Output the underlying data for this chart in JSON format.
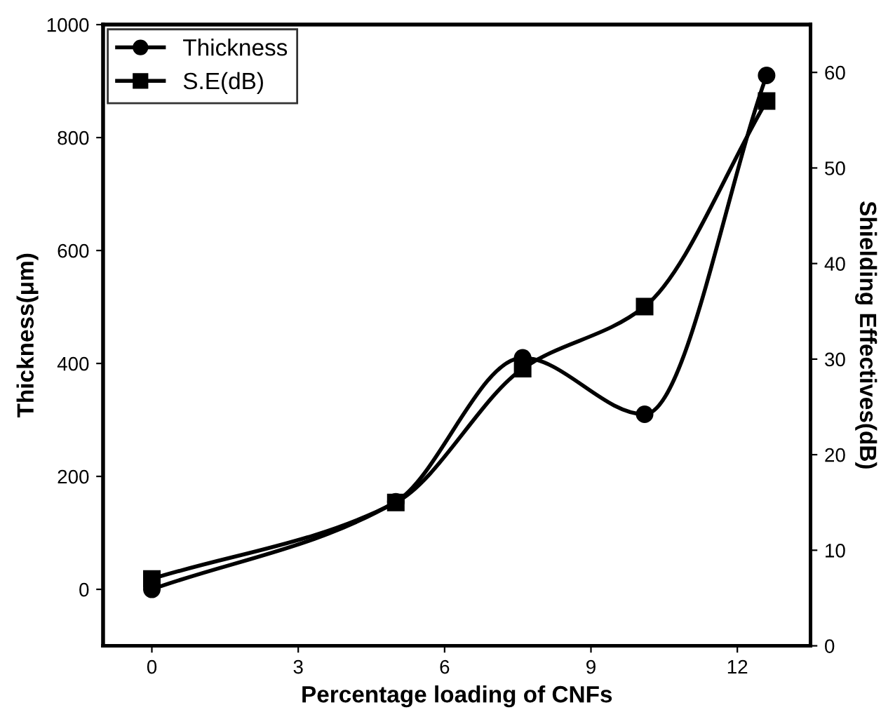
{
  "chart_data": {
    "type": "line",
    "xlabel": "Percentage loading of CNFs",
    "ylabel": "Thickness(μm)",
    "y2label": "Shielding Effectives(dB)",
    "series": [
      {
        "name": "Thickness",
        "color": "#000000",
        "marker": "circle",
        "x": [
          0,
          5,
          7.6,
          10.1,
          12.6
        ],
        "values": [
          0,
          155,
          410,
          310,
          910
        ]
      },
      {
        "name": "S.E(dB)",
        "color": "#000000",
        "marker": "square",
        "axis": "y2",
        "x": [
          0,
          5,
          7.6,
          10.1,
          12.6
        ],
        "values": [
          7,
          15,
          29,
          35.5,
          57
        ]
      }
    ],
    "xlim": [
      -1,
      13.5
    ],
    "xticks": [
      0,
      3,
      6,
      9,
      12
    ],
    "ylim": [
      -100,
      1000
    ],
    "yticks": [
      0,
      200,
      400,
      600,
      800,
      1000
    ],
    "y2lim": [
      0,
      65
    ],
    "y2ticks": [
      0,
      10,
      20,
      30,
      40,
      50,
      60
    ],
    "legend": "top left",
    "grid": false,
    "line_style": "solid"
  }
}
